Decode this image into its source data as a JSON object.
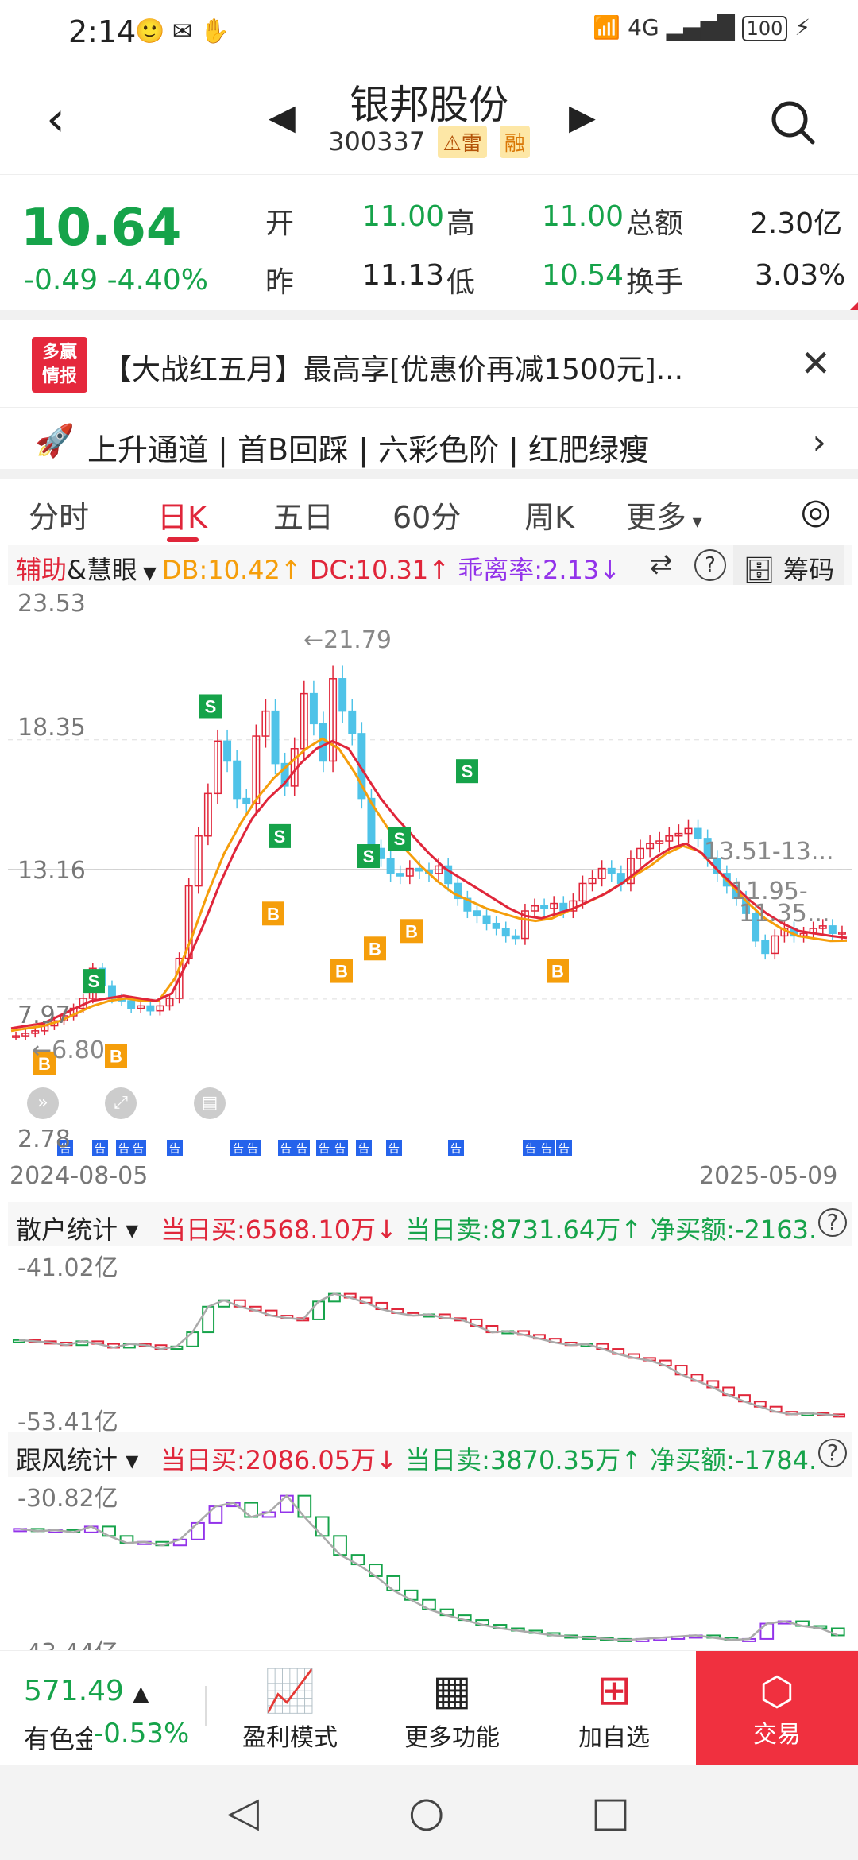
{
  "status": {
    "time": "2:14",
    "network": "4G",
    "battery": "100"
  },
  "header": {
    "stock_name": "银邦股份",
    "stock_code": "300337",
    "tag_thunder": "雷",
    "tag_margin": "融"
  },
  "quote": {
    "price": "10.64",
    "change": "-0.49",
    "change_pct": "-4.40%",
    "open_label": "开",
    "open": "11.00",
    "high_label": "高",
    "high": "11.00",
    "amount_label": "总额",
    "amount": "2.30亿",
    "prev_label": "昨",
    "prev": "11.13",
    "low_label": "低",
    "low": "10.54",
    "turnover_label": "换手",
    "turnover": "3.03%"
  },
  "ad": {
    "logo_top": "多赢",
    "logo_bottom": "情报",
    "text": "【大战红五月】最高享[优惠价再减1500元]..."
  },
  "signals": {
    "text": "上升通道 | 首B回踩 | 六彩色阶 | 红肥绿瘦"
  },
  "tabs": [
    "分时",
    "日K",
    "五日",
    "60分",
    "周K",
    "更多"
  ],
  "indicator": {
    "name1": "辅助",
    "name2": "&慧眼",
    "db": "DB:10.42↑",
    "dc": "DC:10.31↑",
    "deviation": "乖离率:2.13↓",
    "chips": "筹码"
  },
  "chart_data": {
    "type": "candlestick",
    "title": "",
    "y_ticks": [
      "23.53",
      "18.35",
      "13.16",
      "7.97",
      "2.78"
    ],
    "ylim": [
      2.78,
      23.53
    ],
    "x_start": "2024-08-05",
    "x_end": "2025-05-09",
    "annotations": [
      "←21.79",
      "←6.80",
      "13.51-13...",
      "11.95-",
      "11.35..."
    ],
    "signals_sell": [
      "S",
      "S",
      "S",
      "S",
      "S",
      "S"
    ],
    "signals_buy": [
      "B",
      "B",
      "B",
      "B",
      "B",
      "B",
      "B"
    ],
    "notice_marker": "告",
    "series": [
      {
        "name": "DB",
        "color": "#e0263a"
      },
      {
        "name": "DC",
        "color": "#f59e0b"
      }
    ],
    "close": [
      6.5,
      6.6,
      6.7,
      6.9,
      7.1,
      7.3,
      7.6,
      8.0,
      9.2,
      8.5,
      8.0,
      7.9,
      7.6,
      7.7,
      7.5,
      7.7,
      8.0,
      9.6,
      12.5,
      14.5,
      16.2,
      18.3,
      17.5,
      16.0,
      15.8,
      18.5,
      19.5,
      17.4,
      16.5,
      18.0,
      20.2,
      19.0,
      17.5,
      20.8,
      19.5,
      18.6,
      16.0,
      14.0,
      13.6,
      13.0,
      12.9,
      13.2,
      13.1,
      13.0,
      13.3,
      12.6,
      12.0,
      11.5,
      11.3,
      11.0,
      10.8,
      10.5,
      10.4,
      11.5,
      11.7,
      11.6,
      11.8,
      11.5,
      11.9,
      12.6,
      12.8,
      13.2,
      13.0,
      12.6,
      13.6,
      14.0,
      14.2,
      14.3,
      14.5,
      14.6,
      14.8,
      14.4,
      13.6,
      13.0,
      12.5,
      12.0,
      11.4,
      10.3,
      9.8,
      10.5,
      10.8,
      10.5,
      10.6,
      10.8,
      10.9,
      10.6,
      10.64
    ],
    "db_line": [
      6.8,
      6.9,
      7.0,
      7.3,
      7.6,
      7.9,
      8.0,
      8.1,
      8.0,
      7.9,
      8.2,
      9.5,
      11.0,
      12.6,
      14.0,
      15.2,
      16.0,
      16.6,
      17.4,
      18.0,
      18.3,
      18.0,
      17.0,
      16.0,
      15.2,
      14.5,
      13.8,
      13.2,
      12.8,
      12.4,
      12.0,
      11.6,
      11.3,
      11.2,
      11.4,
      11.6,
      11.9,
      12.2,
      12.6,
      13.1,
      13.6,
      14.0,
      14.2,
      13.8,
      13.1,
      12.5,
      11.9,
      11.4,
      11.0,
      10.7,
      10.6,
      10.5,
      10.42
    ],
    "dc_line": [
      6.7,
      6.8,
      6.9,
      7.1,
      7.4,
      7.7,
      7.9,
      8.0,
      7.9,
      7.9,
      8.8,
      10.4,
      12.2,
      13.8,
      15.0,
      16.0,
      16.8,
      17.4,
      18.0,
      18.4,
      18.0,
      17.0,
      15.8,
      14.8,
      14.0,
      13.3,
      12.7,
      12.2,
      11.9,
      11.6,
      11.4,
      11.2,
      11.1,
      11.2,
      11.5,
      11.8,
      12.1,
      12.5,
      12.9,
      13.3,
      13.8,
      14.1,
      13.9,
      13.2,
      12.5,
      11.8,
      11.2,
      10.8,
      10.5,
      10.4,
      10.3,
      10.31
    ]
  },
  "retail": {
    "label": "散户统计",
    "buy": "当日买:6568.10万↓",
    "sell": "当日卖:8731.64万↑",
    "net": "净买额:-2163.",
    "top": "-41.02亿",
    "bottom": "-53.41亿",
    "values": [
      -47.2,
      -47.3,
      -47.4,
      -47.6,
      -47.3,
      -47.5,
      -47.8,
      -47.5,
      -47.6,
      -47.9,
      -47.7,
      -46.6,
      -44.6,
      -44.1,
      -44.6,
      -44.9,
      -45.3,
      -45.5,
      -45.6,
      -44.2,
      -43.6,
      -43.9,
      -44.3,
      -44.8,
      -45.1,
      -45.3,
      -45.2,
      -45.5,
      -45.6,
      -46.1,
      -46.6,
      -46.5,
      -46.8,
      -47.1,
      -47.4,
      -47.6,
      -47.5,
      -47.9,
      -48.3,
      -48.6,
      -48.8,
      -49.2,
      -49.9,
      -50.4,
      -50.9,
      -51.5,
      -52.0,
      -52.4,
      -52.8,
      -53.0,
      -52.9,
      -53.0,
      -53.1
    ]
  },
  "follow": {
    "label": "跟风统计",
    "buy": "当日买:2086.05万↓",
    "sell": "当日卖:3870.35万↑",
    "net": "净买额:-1784.",
    "top": "-30.82亿",
    "bottom": "-43.44亿",
    "values": [
      -34.0,
      -34.2,
      -34.1,
      -34.3,
      -33.8,
      -34.6,
      -35.2,
      -35.1,
      -35.4,
      -34.9,
      -33.5,
      -32.1,
      -31.8,
      -33.0,
      -32.6,
      -31.2,
      -33.0,
      -34.6,
      -36.2,
      -37.0,
      -38.0,
      -39.2,
      -40.0,
      -40.8,
      -41.3,
      -41.7,
      -42.1,
      -42.4,
      -42.6,
      -42.8,
      -43.0,
      -43.1,
      -43.2,
      -43.3,
      -43.4,
      -43.3,
      -43.2,
      -43.1,
      -43.0,
      -43.2,
      -43.4,
      -43.3,
      -42.0,
      -41.8,
      -42.2,
      -42.4,
      -43.0
    ]
  },
  "bottom": {
    "index_value": "571.49",
    "index_name": "有色金",
    "index_pct": "-0.53%",
    "btn_profit": "盈利模式",
    "btn_more": "更多功能",
    "btn_add": "加自选",
    "btn_trade": "交易"
  }
}
